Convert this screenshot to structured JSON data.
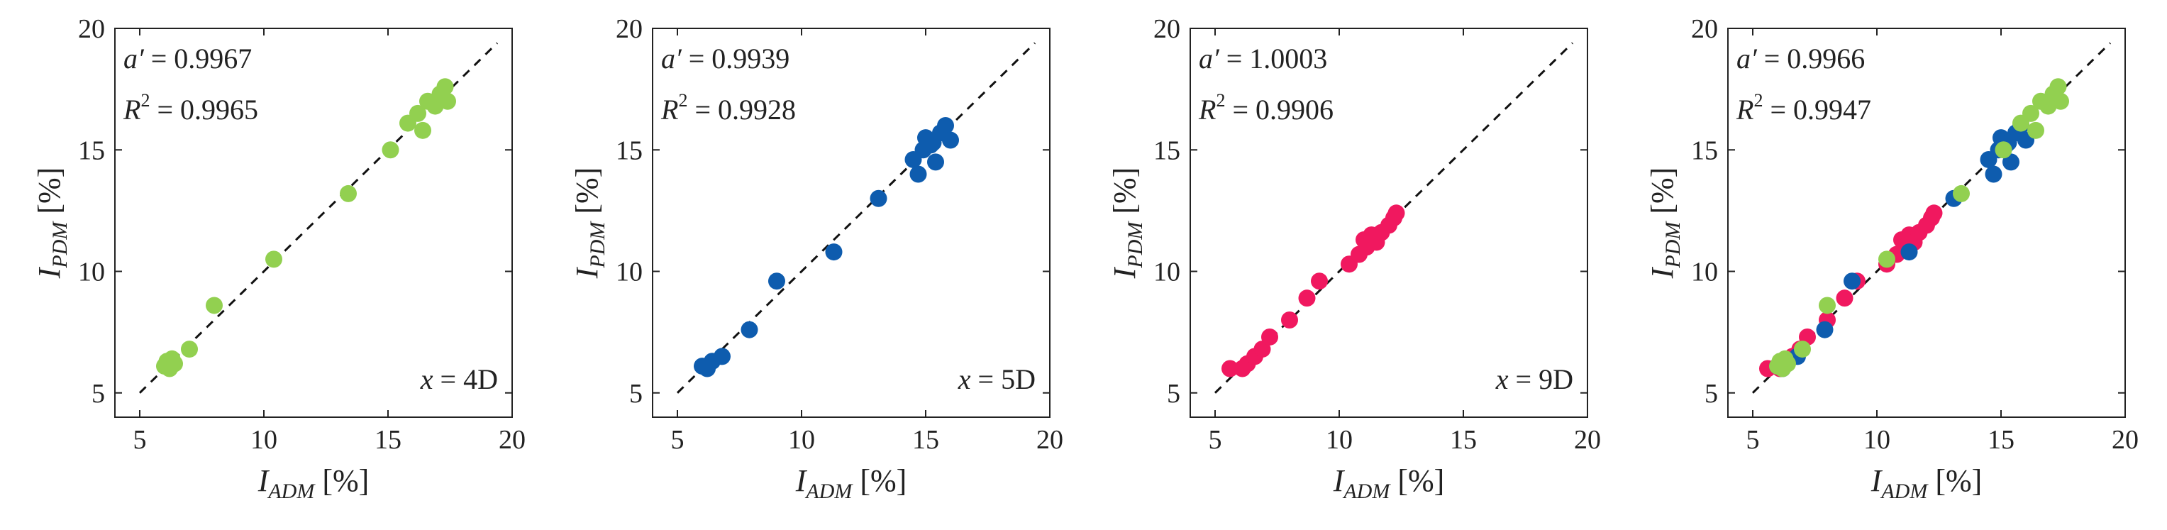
{
  "figure": {
    "colors": {
      "x4D": "#92D050",
      "x5D": "#0E5CAE",
      "x9D": "#F0185F",
      "axis": "#222222",
      "reference_line": "#111111"
    }
  },
  "chart_data": [
    {
      "type": "scatter",
      "xlabel": {
        "symbol": "I",
        "subscript": "ADM",
        "unit": "[%]"
      },
      "ylabel": {
        "symbol": "I",
        "subscript": "PDM",
        "unit": "[%]"
      },
      "xlim": [
        4,
        20
      ],
      "ylim": [
        4,
        20
      ],
      "xticks": [
        "5",
        "10",
        "15",
        "20"
      ],
      "yticks": [
        "5",
        "10",
        "15",
        "20"
      ],
      "reference_line": "y = x",
      "annotations": {
        "a_label": "a′",
        "a_value": "= 0.9967",
        "r2_label": "R",
        "r2_sup": "2",
        "r2_value": "= 0.9965",
        "position_var": "x",
        "position_value": "= 4D"
      },
      "series": [
        {
          "name": "x = 4D",
          "color": "#92D050",
          "x": [
            6.0,
            6.1,
            6.2,
            6.3,
            6.4,
            7.0,
            8.0,
            10.4,
            13.4,
            15.1,
            15.8,
            16.2,
            16.4,
            16.6,
            16.9,
            17.1,
            17.3,
            17.4
          ],
          "y": [
            6.1,
            6.3,
            6.0,
            6.4,
            6.2,
            6.8,
            8.6,
            10.5,
            13.2,
            15.0,
            16.1,
            16.5,
            15.8,
            17.0,
            16.8,
            17.3,
            17.6,
            17.0
          ]
        }
      ]
    },
    {
      "type": "scatter",
      "xlabel": {
        "symbol": "I",
        "subscript": "ADM",
        "unit": "[%]"
      },
      "ylabel": {
        "symbol": "I",
        "subscript": "PDM",
        "unit": "[%]"
      },
      "xlim": [
        4,
        20
      ],
      "ylim": [
        4,
        20
      ],
      "xticks": [
        "5",
        "10",
        "15",
        "20"
      ],
      "yticks": [
        "5",
        "10",
        "15",
        "20"
      ],
      "reference_line": "y = x",
      "annotations": {
        "a_label": "a′",
        "a_value": "= 0.9939",
        "r2_label": "R",
        "r2_sup": "2",
        "r2_value": "= 0.9928",
        "position_var": "x",
        "position_value": "= 5D"
      },
      "series": [
        {
          "name": "x = 5D",
          "color": "#0E5CAE",
          "x": [
            6.0,
            6.2,
            6.4,
            6.8,
            7.9,
            9.0,
            11.3,
            13.1,
            14.5,
            14.7,
            14.9,
            15.0,
            15.2,
            15.4,
            15.6,
            15.8,
            16.0,
            15.3
          ],
          "y": [
            6.1,
            6.0,
            6.3,
            6.5,
            7.6,
            9.6,
            10.8,
            13.0,
            14.6,
            14.0,
            15.0,
            15.5,
            15.2,
            14.5,
            15.7,
            16.0,
            15.4,
            15.3
          ]
        }
      ]
    },
    {
      "type": "scatter",
      "xlabel": {
        "symbol": "I",
        "subscript": "ADM",
        "unit": "[%]"
      },
      "ylabel": {
        "symbol": "I",
        "subscript": "PDM",
        "unit": "[%]"
      },
      "xlim": [
        4,
        20
      ],
      "ylim": [
        4,
        20
      ],
      "xticks": [
        "5",
        "10",
        "15",
        "20"
      ],
      "yticks": [
        "5",
        "10",
        "15",
        "20"
      ],
      "reference_line": "y = x",
      "annotations": {
        "a_label": "a′",
        "a_value": "= 1.0003",
        "r2_label": "R",
        "r2_sup": "2",
        "r2_value": "= 0.9906",
        "position_var": "x",
        "position_value": "= 9D"
      },
      "series": [
        {
          "name": "x = 9D",
          "color": "#F0185F",
          "x": [
            5.6,
            6.1,
            6.3,
            6.6,
            6.9,
            7.2,
            8.0,
            8.7,
            9.2,
            10.4,
            10.8,
            11.0,
            11.1,
            11.3,
            11.5,
            11.7,
            12.0,
            12.2,
            12.3
          ],
          "y": [
            6.0,
            6.0,
            6.2,
            6.5,
            6.8,
            7.3,
            8.0,
            8.9,
            9.6,
            10.3,
            10.7,
            11.3,
            11.0,
            11.5,
            11.2,
            11.6,
            11.9,
            12.2,
            12.4
          ]
        }
      ]
    },
    {
      "type": "scatter",
      "xlabel": {
        "symbol": "I",
        "subscript": "ADM",
        "unit": "[%]"
      },
      "ylabel": {
        "symbol": "I",
        "subscript": "PDM",
        "unit": "[%]"
      },
      "xlim": [
        4,
        20
      ],
      "ylim": [
        4,
        20
      ],
      "xticks": [
        "5",
        "10",
        "15",
        "20"
      ],
      "yticks": [
        "5",
        "10",
        "15",
        "20"
      ],
      "reference_line": "y = x",
      "annotations": {
        "a_label": "a′",
        "a_value": "= 0.9966",
        "r2_label": "R",
        "r2_sup": "2",
        "r2_value": "= 0.9947"
      },
      "series": [
        {
          "name": "x = 9D",
          "color": "#F0185F",
          "x": [
            5.6,
            6.1,
            6.3,
            6.6,
            6.9,
            7.2,
            8.0,
            8.7,
            9.2,
            10.4,
            10.8,
            11.0,
            11.1,
            11.3,
            11.5,
            11.7,
            12.0,
            12.2,
            12.3
          ],
          "y": [
            6.0,
            6.0,
            6.2,
            6.5,
            6.8,
            7.3,
            8.0,
            8.9,
            9.6,
            10.3,
            10.7,
            11.3,
            11.0,
            11.5,
            11.2,
            11.6,
            11.9,
            12.2,
            12.4
          ]
        },
        {
          "name": "x = 5D",
          "color": "#0E5CAE",
          "x": [
            6.0,
            6.2,
            6.4,
            6.8,
            7.9,
            9.0,
            11.3,
            13.1,
            14.5,
            14.7,
            14.9,
            15.0,
            15.2,
            15.4,
            15.6,
            15.8,
            16.0,
            15.3
          ],
          "y": [
            6.1,
            6.0,
            6.3,
            6.5,
            7.6,
            9.6,
            10.8,
            13.0,
            14.6,
            14.0,
            15.0,
            15.5,
            15.2,
            14.5,
            15.7,
            16.0,
            15.4,
            15.3
          ]
        },
        {
          "name": "x = 4D",
          "color": "#92D050",
          "x": [
            6.0,
            6.1,
            6.2,
            6.3,
            6.4,
            7.0,
            8.0,
            10.4,
            13.4,
            15.1,
            15.8,
            16.2,
            16.4,
            16.6,
            16.9,
            17.1,
            17.3,
            17.4
          ],
          "y": [
            6.1,
            6.3,
            6.0,
            6.4,
            6.2,
            6.8,
            8.6,
            10.5,
            13.2,
            15.0,
            16.1,
            16.5,
            15.8,
            17.0,
            16.8,
            17.3,
            17.6,
            17.0
          ]
        }
      ]
    }
  ]
}
